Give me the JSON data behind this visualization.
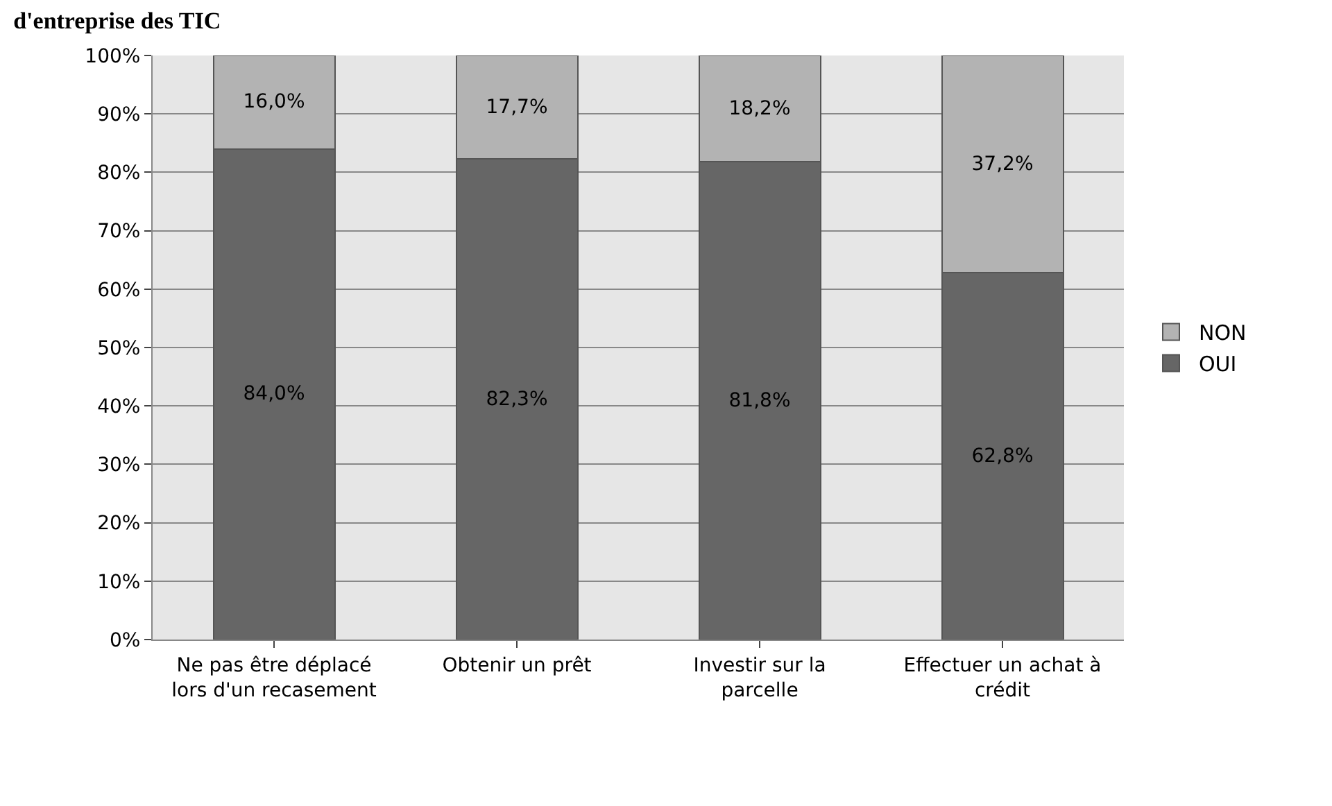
{
  "chart_data": {
    "type": "bar",
    "title": "d'entreprise des TIC",
    "stacked": true,
    "categories": [
      "Ne pas être déplacé lors d'un recasement",
      "Obtenir un prêt",
      "Investir sur la parcelle",
      "Effectuer un achat à crédit"
    ],
    "series": [
      {
        "name": "OUI",
        "color": "#666666",
        "values": [
          84.0,
          82.3,
          81.8,
          62.8
        ],
        "value_labels": [
          "84,0%",
          "82,3%",
          "81,8%",
          "62,8%"
        ]
      },
      {
        "name": "NON",
        "color": "#b3b3b3",
        "values": [
          16.0,
          17.7,
          18.2,
          37.2
        ],
        "value_labels": [
          "16,0%",
          "17,7%",
          "18,2%",
          "37,2%"
        ]
      }
    ],
    "ylim": [
      0,
      100
    ],
    "yticks": [
      {
        "value": 0,
        "label": "0%"
      },
      {
        "value": 10,
        "label": "10%"
      },
      {
        "value": 20,
        "label": "20%"
      },
      {
        "value": 30,
        "label": "30%"
      },
      {
        "value": 40,
        "label": "40%"
      },
      {
        "value": 50,
        "label": "50%"
      },
      {
        "value": 60,
        "label": "60%"
      },
      {
        "value": 70,
        "label": "70%"
      },
      {
        "value": 80,
        "label": "80%"
      },
      {
        "value": 90,
        "label": "90%"
      },
      {
        "value": 100,
        "label": "100%"
      }
    ],
    "grid": "y",
    "legend": "right"
  }
}
